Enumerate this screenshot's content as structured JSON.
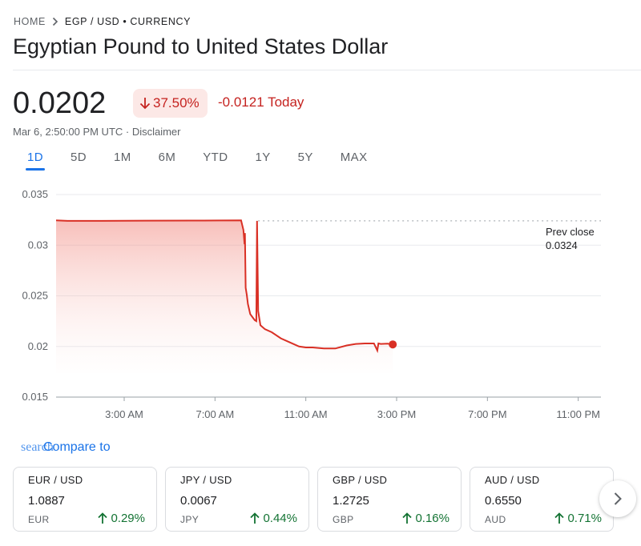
{
  "breadcrumb": {
    "home": "HOME",
    "current": "EGP / USD • CURRENCY"
  },
  "title": "Egyptian Pound to United States Dollar",
  "quote": {
    "price": "0.0202",
    "change_percent": "37.50%",
    "change_abs": "-0.0121 Today",
    "timestamp": "Mar 6, 2:50:00 PM UTC · Disclaimer",
    "direction": "down"
  },
  "ranges": [
    "1D",
    "5D",
    "1M",
    "6M",
    "YTD",
    "1Y",
    "5Y",
    "MAX"
  ],
  "active_range": "1D",
  "chart_data": {
    "type": "area",
    "x_tick_labels": [
      "3:00 AM",
      "7:00 AM",
      "11:00 AM",
      "3:00 PM",
      "7:00 PM",
      "11:00 PM"
    ],
    "y_tick_labels": [
      "0.035",
      "0.03",
      "0.025",
      "0.02",
      "0.015"
    ],
    "ylim": [
      0.015,
      0.035
    ],
    "xlim_hours": [
      0,
      24
    ],
    "series": [
      {
        "x": [
          0,
          0.5,
          2,
          4,
          6,
          7.2,
          8.15,
          8.25,
          8.3,
          8.32,
          8.35,
          8.4,
          8.45,
          8.55,
          8.65,
          8.75,
          8.82,
          8.85,
          8.9,
          9.0,
          9.2,
          9.5,
          9.9,
          10.3,
          10.7,
          11.0,
          11.3,
          11.8,
          12.3,
          12.8,
          13.2,
          13.6,
          14.0,
          14.15,
          14.2,
          14.3,
          14.6,
          14.83
        ],
        "values": [
          0.03245,
          0.0324,
          0.0324,
          0.03242,
          0.03243,
          0.03244,
          0.03245,
          0.0315,
          0.0301,
          0.0312,
          0.0258,
          0.0251,
          0.0242,
          0.0232,
          0.0229,
          0.0226,
          0.0225,
          0.0324,
          0.0235,
          0.0221,
          0.0217,
          0.0214,
          0.0208,
          0.0204,
          0.02,
          0.0199,
          0.0199,
          0.0198,
          0.0198,
          0.0201,
          0.02025,
          0.0203,
          0.0203,
          0.0196,
          0.0203,
          0.02025,
          0.02028,
          0.0202
        ]
      }
    ],
    "prev_close": {
      "label_line1": "Prev close",
      "label_line2": "0.0324",
      "value": 0.0324
    },
    "line_color": "#d93025",
    "grid": true
  },
  "compare": {
    "overlay_text": "search",
    "label": "Compare to"
  },
  "cards": [
    {
      "pair": "EUR / USD",
      "value": "1.0887",
      "code": "EUR",
      "change": "0.29%"
    },
    {
      "pair": "JPY / USD",
      "value": "0.0067",
      "code": "JPY",
      "change": "0.44%"
    },
    {
      "pair": "GBP / USD",
      "value": "1.2725",
      "code": "GBP",
      "change": "0.16%"
    },
    {
      "pair": "AUD / USD",
      "value": "0.6550",
      "code": "AUD",
      "change": "0.71%"
    }
  ],
  "icons": {
    "breadcrumb_separator": "chevron-right-icon",
    "change_arrow": "arrow-down-icon",
    "card_arrow": "arrow-up-icon",
    "next": "chevron-right-icon"
  },
  "colors": {
    "negative": "#c5221f",
    "negative_bg": "#fce8e6",
    "positive": "#137333",
    "accent": "#1a73e8"
  }
}
